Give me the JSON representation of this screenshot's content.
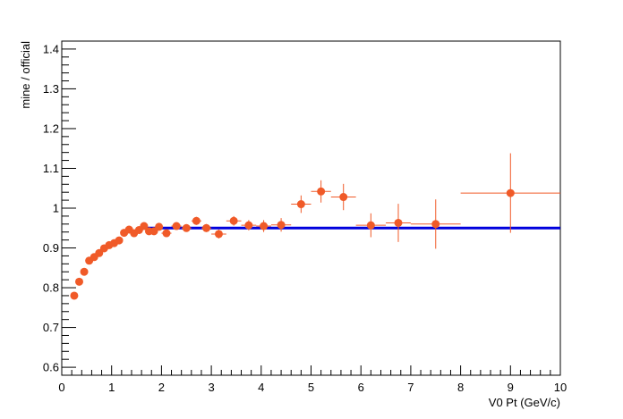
{
  "chart_data": {
    "type": "scatter",
    "xlabel": "V0 Pt (GeV/c)",
    "ylabel": "mine / official",
    "xlim": [
      0,
      10
    ],
    "ylim": [
      0.58,
      1.42
    ],
    "x_major_ticks": [
      0,
      1,
      2,
      3,
      4,
      5,
      6,
      7,
      8,
      9,
      10
    ],
    "y_major_ticks": [
      0.6,
      0.7,
      0.8,
      0.9,
      1,
      1.1,
      1.2,
      1.3,
      1.4
    ],
    "x_tick_labels": [
      "0",
      "1",
      "2",
      "3",
      "4",
      "5",
      "6",
      "7",
      "8",
      "9",
      "10"
    ],
    "y_tick_labels": [
      "0.6",
      "0.7",
      "0.8",
      "0.9",
      "1",
      "1.1",
      "1.2",
      "1.3",
      "1.4"
    ],
    "grid": false,
    "colors": {
      "points": "#f05a28",
      "fit_line": "#0000dd",
      "axes": "#000000"
    },
    "series": [
      {
        "points": [
          {
            "x": 0.25,
            "y": 0.78,
            "xerr": 0.05,
            "yerr": 0.005
          },
          {
            "x": 0.35,
            "y": 0.815,
            "xerr": 0.05,
            "yerr": 0.005
          },
          {
            "x": 0.45,
            "y": 0.84,
            "xerr": 0.05,
            "yerr": 0.005
          },
          {
            "x": 0.55,
            "y": 0.868,
            "xerr": 0.05,
            "yerr": 0.005
          },
          {
            "x": 0.65,
            "y": 0.877,
            "xerr": 0.05,
            "yerr": 0.005
          },
          {
            "x": 0.75,
            "y": 0.887,
            "xerr": 0.05,
            "yerr": 0.005
          },
          {
            "x": 0.85,
            "y": 0.899,
            "xerr": 0.05,
            "yerr": 0.005
          },
          {
            "x": 0.95,
            "y": 0.907,
            "xerr": 0.05,
            "yerr": 0.005
          },
          {
            "x": 1.05,
            "y": 0.912,
            "xerr": 0.05,
            "yerr": 0.006
          },
          {
            "x": 1.15,
            "y": 0.919,
            "xerr": 0.05,
            "yerr": 0.006
          },
          {
            "x": 1.25,
            "y": 0.938,
            "xerr": 0.05,
            "yerr": 0.006
          },
          {
            "x": 1.35,
            "y": 0.946,
            "xerr": 0.05,
            "yerr": 0.006
          },
          {
            "x": 1.45,
            "y": 0.937,
            "xerr": 0.05,
            "yerr": 0.006
          },
          {
            "x": 1.55,
            "y": 0.945,
            "xerr": 0.05,
            "yerr": 0.007
          },
          {
            "x": 1.65,
            "y": 0.955,
            "xerr": 0.05,
            "yerr": 0.007
          },
          {
            "x": 1.75,
            "y": 0.942,
            "xerr": 0.05,
            "yerr": 0.007
          },
          {
            "x": 1.85,
            "y": 0.942,
            "xerr": 0.05,
            "yerr": 0.008
          },
          {
            "x": 1.95,
            "y": 0.953,
            "xerr": 0.05,
            "yerr": 0.008
          },
          {
            "x": 2.1,
            "y": 0.937,
            "xerr": 0.1,
            "yerr": 0.008
          },
          {
            "x": 2.3,
            "y": 0.955,
            "xerr": 0.1,
            "yerr": 0.009
          },
          {
            "x": 2.5,
            "y": 0.95,
            "xerr": 0.1,
            "yerr": 0.009
          },
          {
            "x": 2.7,
            "y": 0.968,
            "xerr": 0.1,
            "yerr": 0.01
          },
          {
            "x": 2.9,
            "y": 0.95,
            "xerr": 0.1,
            "yerr": 0.01
          },
          {
            "x": 3.15,
            "y": 0.935,
            "xerr": 0.15,
            "yerr": 0.011
          },
          {
            "x": 3.45,
            "y": 0.968,
            "xerr": 0.15,
            "yerr": 0.012
          },
          {
            "x": 3.75,
            "y": 0.957,
            "xerr": 0.15,
            "yerr": 0.013
          },
          {
            "x": 4.05,
            "y": 0.955,
            "xerr": 0.15,
            "yerr": 0.015
          },
          {
            "x": 4.4,
            "y": 0.958,
            "xerr": 0.2,
            "yerr": 0.017
          },
          {
            "x": 4.8,
            "y": 1.01,
            "xerr": 0.2,
            "yerr": 0.022
          },
          {
            "x": 5.2,
            "y": 1.042,
            "xerr": 0.2,
            "yerr": 0.028
          },
          {
            "x": 5.65,
            "y": 1.028,
            "xerr": 0.25,
            "yerr": 0.033
          },
          {
            "x": 6.2,
            "y": 0.957,
            "xerr": 0.3,
            "yerr": 0.03
          },
          {
            "x": 6.75,
            "y": 0.963,
            "xerr": 0.25,
            "yerr": 0.048
          },
          {
            "x": 7.5,
            "y": 0.96,
            "xerr": 0.5,
            "yerr": 0.062
          },
          {
            "x": 9.0,
            "y": 1.038,
            "xerr": 1.0,
            "yerr": 0.1
          }
        ]
      }
    ],
    "fit_line": {
      "x0": 1.55,
      "x1": 10,
      "y": 0.95
    }
  }
}
